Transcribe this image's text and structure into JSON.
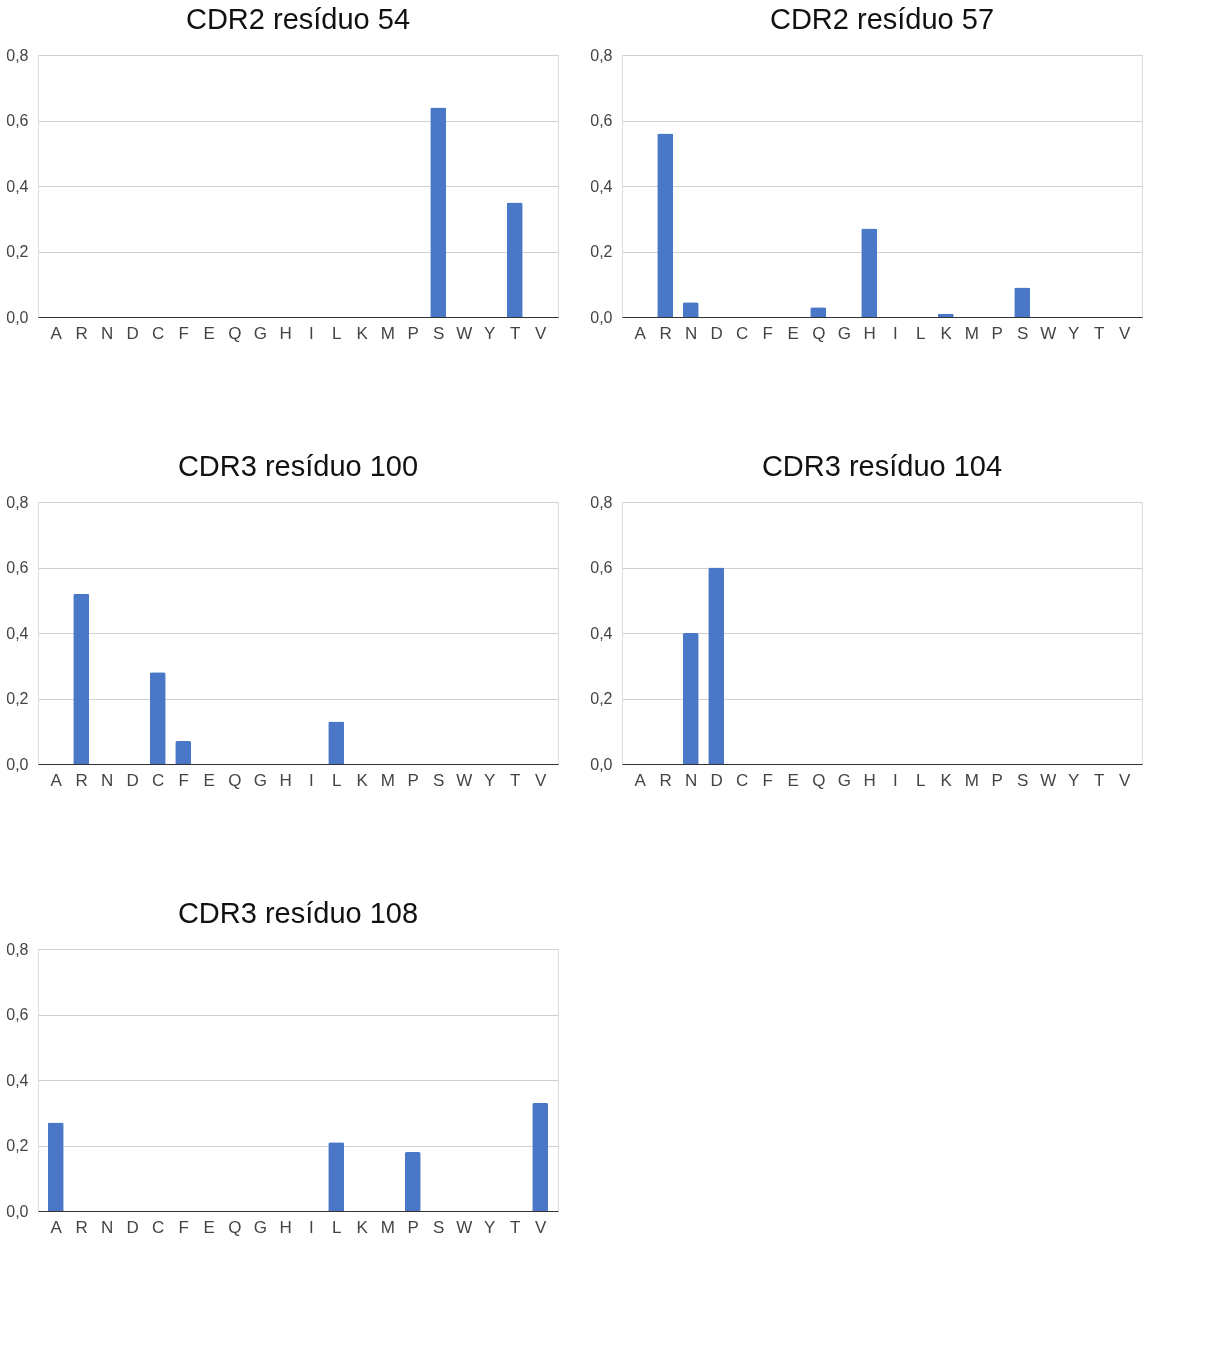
{
  "chart_data": [
    {
      "type": "bar",
      "title": "CDR2 resíduo 54",
      "categories": [
        "A",
        "R",
        "N",
        "D",
        "C",
        "F",
        "E",
        "Q",
        "G",
        "H",
        "I",
        "L",
        "K",
        "M",
        "P",
        "S",
        "W",
        "Y",
        "T",
        "V"
      ],
      "values": [
        0,
        0,
        0,
        0,
        0,
        0,
        0,
        0,
        0,
        0,
        0,
        0,
        0,
        0,
        0,
        0.64,
        0,
        0,
        0.35,
        0
      ],
      "color": "#4a78c6",
      "ylim": [
        0,
        0.8
      ],
      "yticks": [
        {
          "value": 0,
          "label": "0,0"
        },
        {
          "value": 0.2,
          "label": "0,2"
        },
        {
          "value": 0.4,
          "label": "0,4"
        },
        {
          "value": 0.6,
          "label": "0,6"
        },
        {
          "value": 0.8,
          "label": "0,8"
        }
      ],
      "grid": "y"
    },
    {
      "type": "bar",
      "title": "CDR2 resíduo 57",
      "categories": [
        "A",
        "R",
        "N",
        "D",
        "C",
        "F",
        "E",
        "Q",
        "G",
        "H",
        "I",
        "L",
        "K",
        "M",
        "P",
        "S",
        "W",
        "Y",
        "T",
        "V"
      ],
      "values": [
        0,
        0.56,
        0.045,
        0,
        0,
        0,
        0,
        0.03,
        0,
        0.27,
        0,
        0,
        0.01,
        0,
        0,
        0.09,
        0,
        0,
        0,
        0
      ],
      "color": "#4a78c6",
      "ylim": [
        0,
        0.8
      ],
      "yticks": [
        {
          "value": 0,
          "label": "0,0"
        },
        {
          "value": 0.2,
          "label": "0,2"
        },
        {
          "value": 0.4,
          "label": "0,4"
        },
        {
          "value": 0.6,
          "label": "0,6"
        },
        {
          "value": 0.8,
          "label": "0,8"
        }
      ],
      "grid": "y"
    },
    {
      "type": "bar",
      "title": "CDR3 resíduo 100",
      "categories": [
        "A",
        "R",
        "N",
        "D",
        "C",
        "F",
        "E",
        "Q",
        "G",
        "H",
        "I",
        "L",
        "K",
        "M",
        "P",
        "S",
        "W",
        "Y",
        "T",
        "V"
      ],
      "values": [
        0,
        0.52,
        0,
        0,
        0.28,
        0.07,
        0,
        0,
        0,
        0,
        0,
        0.13,
        0,
        0,
        0,
        0,
        0,
        0,
        0,
        0
      ],
      "color": "#4a78c6",
      "ylim": [
        0,
        0.8
      ],
      "yticks": [
        {
          "value": 0,
          "label": "0,0"
        },
        {
          "value": 0.2,
          "label": "0,2"
        },
        {
          "value": 0.4,
          "label": "0,4"
        },
        {
          "value": 0.6,
          "label": "0,6"
        },
        {
          "value": 0.8,
          "label": "0,8"
        }
      ],
      "grid": "y"
    },
    {
      "type": "bar",
      "title": "CDR3  resíduo 104",
      "categories": [
        "A",
        "R",
        "N",
        "D",
        "C",
        "F",
        "E",
        "Q",
        "G",
        "H",
        "I",
        "L",
        "K",
        "M",
        "P",
        "S",
        "W",
        "Y",
        "T",
        "V"
      ],
      "values": [
        0,
        0,
        0.4,
        0.6,
        0,
        0,
        0,
        0,
        0,
        0,
        0,
        0,
        0,
        0,
        0,
        0,
        0,
        0,
        0,
        0
      ],
      "color": "#4a78c6",
      "ylim": [
        0,
        0.8
      ],
      "yticks": [
        {
          "value": 0,
          "label": "0,0"
        },
        {
          "value": 0.2,
          "label": "0,2"
        },
        {
          "value": 0.4,
          "label": "0,4"
        },
        {
          "value": 0.6,
          "label": "0,6"
        },
        {
          "value": 0.8,
          "label": "0,8"
        }
      ],
      "grid": "y"
    },
    {
      "type": "bar",
      "title": "CDR3 resíduo 108",
      "categories": [
        "A",
        "R",
        "N",
        "D",
        "C",
        "F",
        "E",
        "Q",
        "G",
        "H",
        "I",
        "L",
        "K",
        "M",
        "P",
        "S",
        "W",
        "Y",
        "T",
        "V"
      ],
      "values": [
        0.27,
        0,
        0,
        0,
        0,
        0,
        0,
        0,
        0,
        0,
        0,
        0.21,
        0,
        0,
        0.18,
        0,
        0,
        0,
        0,
        0.33
      ],
      "color": "#4a78c6",
      "ylim": [
        0,
        0.8
      ],
      "yticks": [
        {
          "value": 0,
          "label": "0,0"
        },
        {
          "value": 0.2,
          "label": "0,2"
        },
        {
          "value": 0.4,
          "label": "0,4"
        },
        {
          "value": 0.6,
          "label": "0,6"
        },
        {
          "value": 0.8,
          "label": "0,8"
        }
      ],
      "grid": "y"
    }
  ]
}
